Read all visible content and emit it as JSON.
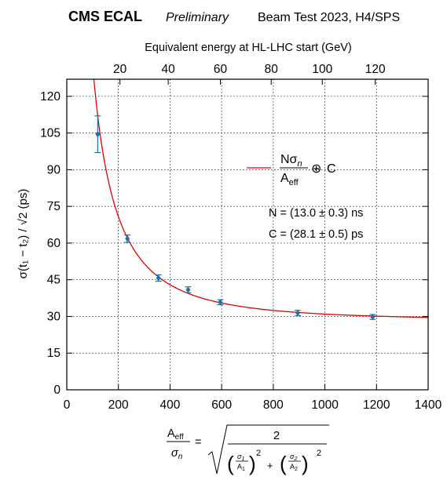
{
  "header": {
    "experiment": "CMS ECAL",
    "status": "Preliminary",
    "test": "Beam Test 2023, H4/SPS"
  },
  "chart_data": {
    "type": "scatter",
    "x": [
      120,
      235,
      355,
      470,
      595,
      895,
      1185
    ],
    "y": [
      104.5,
      61.8,
      45.7,
      40.9,
      35.8,
      31.4,
      29.8
    ],
    "yerr": [
      7.5,
      1.5,
      1.3,
      1.2,
      1.0,
      1.1,
      1.0
    ],
    "xlim": [
      0,
      1400
    ],
    "ylim": [
      0,
      127
    ],
    "xticks": [
      "0",
      "200",
      "400",
      "600",
      "800",
      "1000",
      "1200",
      "1400"
    ],
    "yticks": [
      "0",
      "15",
      "30",
      "45",
      "60",
      "75",
      "90",
      "105",
      "120"
    ],
    "top_axis": {
      "label": "Equivalent energy at HL-LHC start (GeV)",
      "ticks": [
        {
          "label": "20",
          "x": 206
        },
        {
          "label": "40",
          "x": 393
        },
        {
          "label": "60",
          "x": 595
        },
        {
          "label": "80",
          "x": 792
        },
        {
          "label": "100",
          "x": 990
        },
        {
          "label": "120",
          "x": 1195
        }
      ]
    },
    "ylabel_html": "σ(t₁ − t₂) / √2  (ps)",
    "xlabel": {
      "lhs_num": "A",
      "lhs_num_sub": "eff",
      "lhs_den": "σ",
      "lhs_den_sub": "n",
      "equals": "=",
      "numerator": "2",
      "s1": "σ",
      "s1_sub": "1",
      "a1": "A",
      "a1_sub": "1",
      "s2": "σ",
      "s2_sub": "2",
      "a2": "A",
      "a2_sub": "2",
      "plus": "+",
      "power": "2"
    },
    "fit": {
      "N": 13.0,
      "C": 28.1,
      "color": "#e00000",
      "legend": {
        "num": "Nσ",
        "num_sub": "n",
        "den": "A",
        "den_sub": "eff",
        "oplus": "⊕",
        "c": "C"
      },
      "params": [
        "N = (13.0 ± 0.3) ns",
        "C = (28.1 ± 0.5) ps"
      ]
    },
    "marker_color": "#1f6fa8",
    "grid": true,
    "grid_style": "dotted"
  }
}
